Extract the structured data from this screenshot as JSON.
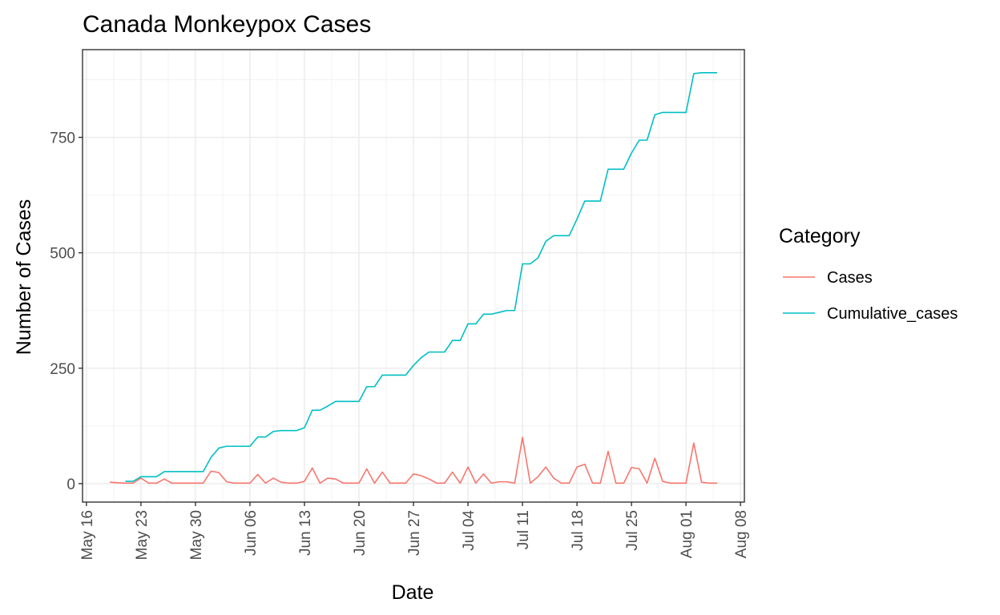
{
  "chart_data": {
    "type": "line",
    "title": "Canada Monkeypox Cases",
    "xlabel": "Date",
    "ylabel": "Number of Cases",
    "x_start_label": "May 19",
    "xlim_days": [
      -3.5,
      81.5
    ],
    "x_ticks": [
      {
        "day": -3,
        "label": "May 16"
      },
      {
        "day": 4,
        "label": "May 23"
      },
      {
        "day": 11,
        "label": "May 30"
      },
      {
        "day": 18,
        "label": "Jun 06"
      },
      {
        "day": 25,
        "label": "Jun 13"
      },
      {
        "day": 32,
        "label": "Jun 20"
      },
      {
        "day": 39,
        "label": "Jun 27"
      },
      {
        "day": 46,
        "label": "Jul 04"
      },
      {
        "day": 53,
        "label": "Jul 11"
      },
      {
        "day": 60,
        "label": "Jul 18"
      },
      {
        "day": 67,
        "label": "Jul 25"
      },
      {
        "day": 74,
        "label": "Aug 01"
      },
      {
        "day": 81,
        "label": "Aug 08"
      }
    ],
    "ylim": [
      -40,
      940
    ],
    "y_ticks": [
      0,
      250,
      500,
      750
    ],
    "legend": {
      "title": "Category",
      "position": "right"
    },
    "series": [
      {
        "name": "Cases",
        "color": "#F8766D",
        "values": [
          3,
          2,
          1,
          1,
          12,
          1,
          1,
          10,
          1,
          1,
          1,
          1,
          1,
          27,
          24,
          4,
          1,
          1,
          1,
          20,
          1,
          12,
          3,
          1,
          1,
          5,
          34,
          1,
          12,
          10,
          1,
          1,
          1,
          32,
          1,
          25,
          1,
          1,
          1,
          21,
          17,
          10,
          1,
          1,
          25,
          1,
          36,
          1,
          21,
          1,
          4,
          4,
          1,
          100,
          1,
          15,
          36,
          12,
          1,
          1,
          36,
          42,
          1,
          1,
          70,
          1,
          1,
          35,
          32,
          1,
          55,
          5,
          1,
          1,
          1,
          88,
          3,
          1,
          1
        ]
      },
      {
        "name": "Cumulative_cases",
        "color": "#00BFC4",
        "values": [
          null,
          null,
          5,
          5,
          15,
          15,
          15,
          26,
          26,
          26,
          26,
          26,
          26,
          57,
          77,
          81,
          81,
          81,
          81,
          101,
          101,
          113,
          115,
          115,
          115,
          121,
          159,
          159,
          168,
          178,
          178,
          178,
          178,
          210,
          210,
          235,
          235,
          235,
          235,
          256,
          273,
          285,
          285,
          285,
          310,
          310,
          346,
          346,
          367,
          367,
          371,
          375,
          375,
          476,
          476,
          489,
          525,
          537,
          537,
          537,
          573,
          612,
          612,
          612,
          681,
          681,
          681,
          716,
          744,
          744,
          799,
          804,
          804,
          804,
          804,
          888,
          890,
          890,
          890
        ]
      }
    ]
  }
}
